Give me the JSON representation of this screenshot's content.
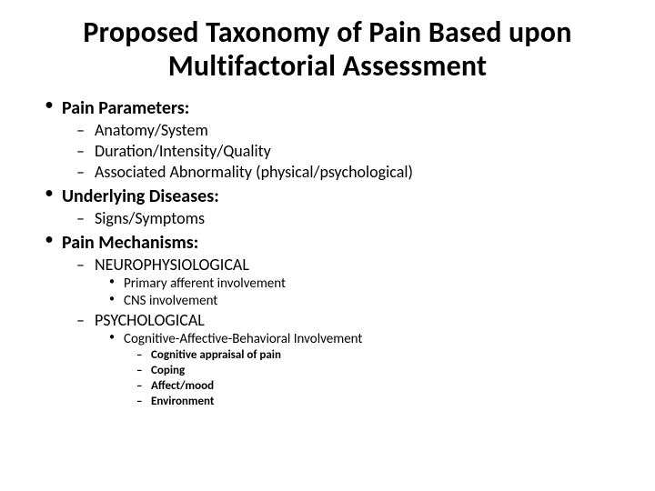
{
  "title_fontsize": 32,
  "body_fontsize_l1": 20,
  "body_fontsize_l2": 18,
  "body_fontsize_l3": 15,
  "body_fontsize_l4": 13,
  "background_color": "#ffffff",
  "text_color": "#000000",
  "font_family": "Calibri",
  "title": "Proposed Taxonomy of Pain Based upon Multifactorial Assessment",
  "items": {
    "a": {
      "label": "Pain Parameters:",
      "sub": {
        "a": "Anatomy/System",
        "b": "Duration/Intensity/Quality",
        "c": "Associated Abnormality (physical/psychological)"
      }
    },
    "b": {
      "label": "Underlying Diseases:",
      "sub": {
        "a": "Signs/Symptoms"
      }
    },
    "c": {
      "label": "Pain Mechanisms:",
      "sub": {
        "a": {
          "label": "NEUROPHYSIOLOGICAL",
          "sub": {
            "a": "Primary afferent involvement",
            "b": "CNS involvement"
          }
        },
        "b": {
          "label": "PSYCHOLOGICAL",
          "sub": {
            "a": {
              "label": "Cognitive-Affective-Behavioral Involvement",
              "sub": {
                "a": "Cognitive appraisal of pain",
                "b": "Coping",
                "c": "Affect/mood",
                "d": "Environment"
              }
            }
          }
        }
      }
    }
  }
}
